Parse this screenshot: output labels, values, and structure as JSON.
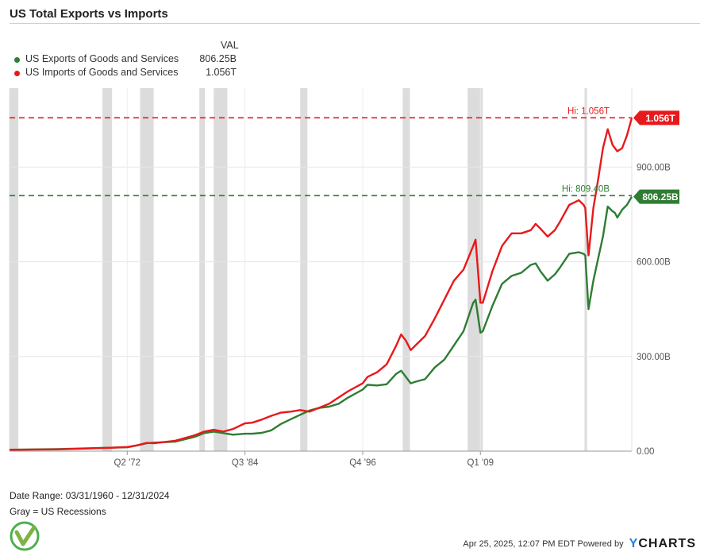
{
  "title": "US Total Exports vs Imports",
  "legend": {
    "header": "VAL",
    "items": [
      {
        "name": "US Exports of Goods and Services",
        "value": "806.25B",
        "color": "#2e7d32"
      },
      {
        "name": "US Imports of Goods and Services",
        "value": "1.056T",
        "color": "#e8191c"
      }
    ]
  },
  "chart_data": {
    "type": "line",
    "x_range": [
      "1960-03-31",
      "2024-12-31"
    ],
    "y_unit": "billions USD",
    "ylim": [
      0,
      1150
    ],
    "y_ticks": [
      {
        "value": 0,
        "label": "0.00"
      },
      {
        "value": 300,
        "label": "300.00B"
      },
      {
        "value": 600,
        "label": "600.00B"
      },
      {
        "value": 900,
        "label": "900.00B"
      }
    ],
    "x_ticks": [
      {
        "date": "1972-06-30",
        "label": "Q2 '72"
      },
      {
        "date": "1984-09-30",
        "label": "Q3 '84"
      },
      {
        "date": "1996-12-31",
        "label": "Q4 '96"
      },
      {
        "date": "2009-03-31",
        "label": "Q1 '09"
      }
    ],
    "recessions": [
      [
        "1960-04-01",
        "1961-02-28"
      ],
      [
        "1969-12-01",
        "1970-11-30"
      ],
      [
        "1973-11-01",
        "1975-03-31"
      ],
      [
        "1980-01-01",
        "1980-07-31"
      ],
      [
        "1981-07-01",
        "1982-11-30"
      ],
      [
        "1990-07-01",
        "1991-03-31"
      ],
      [
        "2001-03-01",
        "2001-11-30"
      ],
      [
        "2007-12-01",
        "2009-06-30"
      ],
      [
        "2020-02-01",
        "2020-04-30"
      ]
    ],
    "series": [
      {
        "name": "US Exports of Goods and Services",
        "color": "#2e7d32",
        "points": [
          [
            "1960-03-31",
            4.5
          ],
          [
            "1965-03-31",
            6.5
          ],
          [
            "1970-03-31",
            10.5
          ],
          [
            "1972-06-30",
            12
          ],
          [
            "1973-06-30",
            18
          ],
          [
            "1974-06-30",
            25
          ],
          [
            "1975-03-31",
            27
          ],
          [
            "1977-06-30",
            30
          ],
          [
            "1979-06-30",
            45
          ],
          [
            "1980-06-30",
            57
          ],
          [
            "1981-06-30",
            62
          ],
          [
            "1982-06-30",
            57
          ],
          [
            "1983-06-30",
            52
          ],
          [
            "1984-09-30",
            55
          ],
          [
            "1985-06-30",
            55
          ],
          [
            "1986-06-30",
            58
          ],
          [
            "1987-06-30",
            66
          ],
          [
            "1988-06-30",
            86
          ],
          [
            "1989-06-30",
            101
          ],
          [
            "1990-06-30",
            115
          ],
          [
            "1991-06-30",
            129
          ],
          [
            "1992-06-30",
            137
          ],
          [
            "1993-06-30",
            141
          ],
          [
            "1994-06-30",
            150
          ],
          [
            "1995-06-30",
            170
          ],
          [
            "1996-12-31",
            195
          ],
          [
            "1997-06-30",
            210
          ],
          [
            "1998-06-30",
            208
          ],
          [
            "1999-06-30",
            212
          ],
          [
            "2000-06-30",
            245
          ],
          [
            "2000-12-31",
            255
          ],
          [
            "2001-06-30",
            235
          ],
          [
            "2001-12-31",
            215
          ],
          [
            "2002-06-30",
            220
          ],
          [
            "2003-06-30",
            228
          ],
          [
            "2004-06-30",
            265
          ],
          [
            "2005-06-30",
            290
          ],
          [
            "2006-06-30",
            335
          ],
          [
            "2007-06-30",
            380
          ],
          [
            "2008-06-30",
            470
          ],
          [
            "2008-09-30",
            480
          ],
          [
            "2009-03-31",
            375
          ],
          [
            "2009-06-30",
            380
          ],
          [
            "2010-06-30",
            460
          ],
          [
            "2011-06-30",
            530
          ],
          [
            "2012-06-30",
            555
          ],
          [
            "2013-06-30",
            565
          ],
          [
            "2014-06-30",
            590
          ],
          [
            "2014-12-31",
            595
          ],
          [
            "2015-06-30",
            570
          ],
          [
            "2016-03-31",
            540
          ],
          [
            "2016-12-31",
            560
          ],
          [
            "2017-06-30",
            580
          ],
          [
            "2018-06-30",
            625
          ],
          [
            "2019-06-30",
            630
          ],
          [
            "2019-12-31",
            625
          ],
          [
            "2020-02-28",
            620
          ],
          [
            "2020-06-30",
            450
          ],
          [
            "2020-12-31",
            540
          ],
          [
            "2021-06-30",
            610
          ],
          [
            "2021-12-31",
            680
          ],
          [
            "2022-06-30",
            775
          ],
          [
            "2022-12-31",
            760
          ],
          [
            "2023-03-31",
            755
          ],
          [
            "2023-06-30",
            740
          ],
          [
            "2023-12-31",
            765
          ],
          [
            "2024-06-30",
            780
          ],
          [
            "2024-12-31",
            806.25
          ]
        ]
      },
      {
        "name": "US Imports of Goods and Services",
        "color": "#e8191c",
        "points": [
          [
            "1960-03-31",
            4.2
          ],
          [
            "1965-03-31",
            5.5
          ],
          [
            "1970-03-31",
            10
          ],
          [
            "1972-06-30",
            13
          ],
          [
            "1973-06-30",
            18
          ],
          [
            "1974-06-30",
            26
          ],
          [
            "1975-03-31",
            25
          ],
          [
            "1977-06-30",
            33
          ],
          [
            "1979-06-30",
            50
          ],
          [
            "1980-06-30",
            62
          ],
          [
            "1981-06-30",
            68
          ],
          [
            "1982-06-30",
            62
          ],
          [
            "1983-06-30",
            70
          ],
          [
            "1984-09-30",
            88
          ],
          [
            "1985-06-30",
            90
          ],
          [
            "1986-06-30",
            100
          ],
          [
            "1987-06-30",
            112
          ],
          [
            "1988-06-30",
            122
          ],
          [
            "1989-06-30",
            125
          ],
          [
            "1990-06-30",
            130
          ],
          [
            "1991-06-30",
            125
          ],
          [
            "1992-06-30",
            138
          ],
          [
            "1993-06-30",
            150
          ],
          [
            "1994-06-30",
            170
          ],
          [
            "1995-06-30",
            190
          ],
          [
            "1996-12-31",
            215
          ],
          [
            "1997-06-30",
            235
          ],
          [
            "1998-06-30",
            250
          ],
          [
            "1999-06-30",
            275
          ],
          [
            "2000-06-30",
            335
          ],
          [
            "2000-12-31",
            370
          ],
          [
            "2001-06-30",
            350
          ],
          [
            "2001-12-31",
            320
          ],
          [
            "2002-06-30",
            335
          ],
          [
            "2003-06-30",
            365
          ],
          [
            "2004-06-30",
            420
          ],
          [
            "2005-06-30",
            480
          ],
          [
            "2006-06-30",
            540
          ],
          [
            "2007-06-30",
            575
          ],
          [
            "2008-06-30",
            650
          ],
          [
            "2008-09-30",
            670
          ],
          [
            "2009-03-31",
            470
          ],
          [
            "2009-06-30",
            470
          ],
          [
            "2010-06-30",
            570
          ],
          [
            "2011-06-30",
            650
          ],
          [
            "2012-06-30",
            690
          ],
          [
            "2013-06-30",
            690
          ],
          [
            "2014-06-30",
            700
          ],
          [
            "2014-12-31",
            720
          ],
          [
            "2015-06-30",
            705
          ],
          [
            "2016-03-31",
            680
          ],
          [
            "2016-12-31",
            700
          ],
          [
            "2017-06-30",
            725
          ],
          [
            "2018-06-30",
            780
          ],
          [
            "2019-06-30",
            795
          ],
          [
            "2019-12-31",
            780
          ],
          [
            "2020-02-28",
            770
          ],
          [
            "2020-06-30",
            620
          ],
          [
            "2020-12-31",
            770
          ],
          [
            "2021-06-30",
            860
          ],
          [
            "2021-12-31",
            960
          ],
          [
            "2022-06-30",
            1020
          ],
          [
            "2022-12-31",
            970
          ],
          [
            "2023-03-31",
            960
          ],
          [
            "2023-06-30",
            950
          ],
          [
            "2023-12-31",
            960
          ],
          [
            "2024-06-30",
            1000
          ],
          [
            "2024-12-31",
            1056
          ]
        ]
      }
    ],
    "reference_lines": [
      {
        "value": 1056,
        "color": "#e8191c",
        "label": "Hi: 1.056T",
        "badge": "1.056T"
      },
      {
        "value": 809.4,
        "color": "#2e7d32",
        "label": "Hi: 809.40B",
        "badge": "806.25B",
        "badge_value": 806.25
      }
    ]
  },
  "footer": {
    "date_range": "Date Range: 03/31/1960 - 12/31/2024",
    "gray_note": "Gray = US Recessions",
    "timestamp": "Apr 25, 2025, 12:07 PM EDT Powered by",
    "brand_y": "Y",
    "brand_rest": "CHARTS"
  }
}
